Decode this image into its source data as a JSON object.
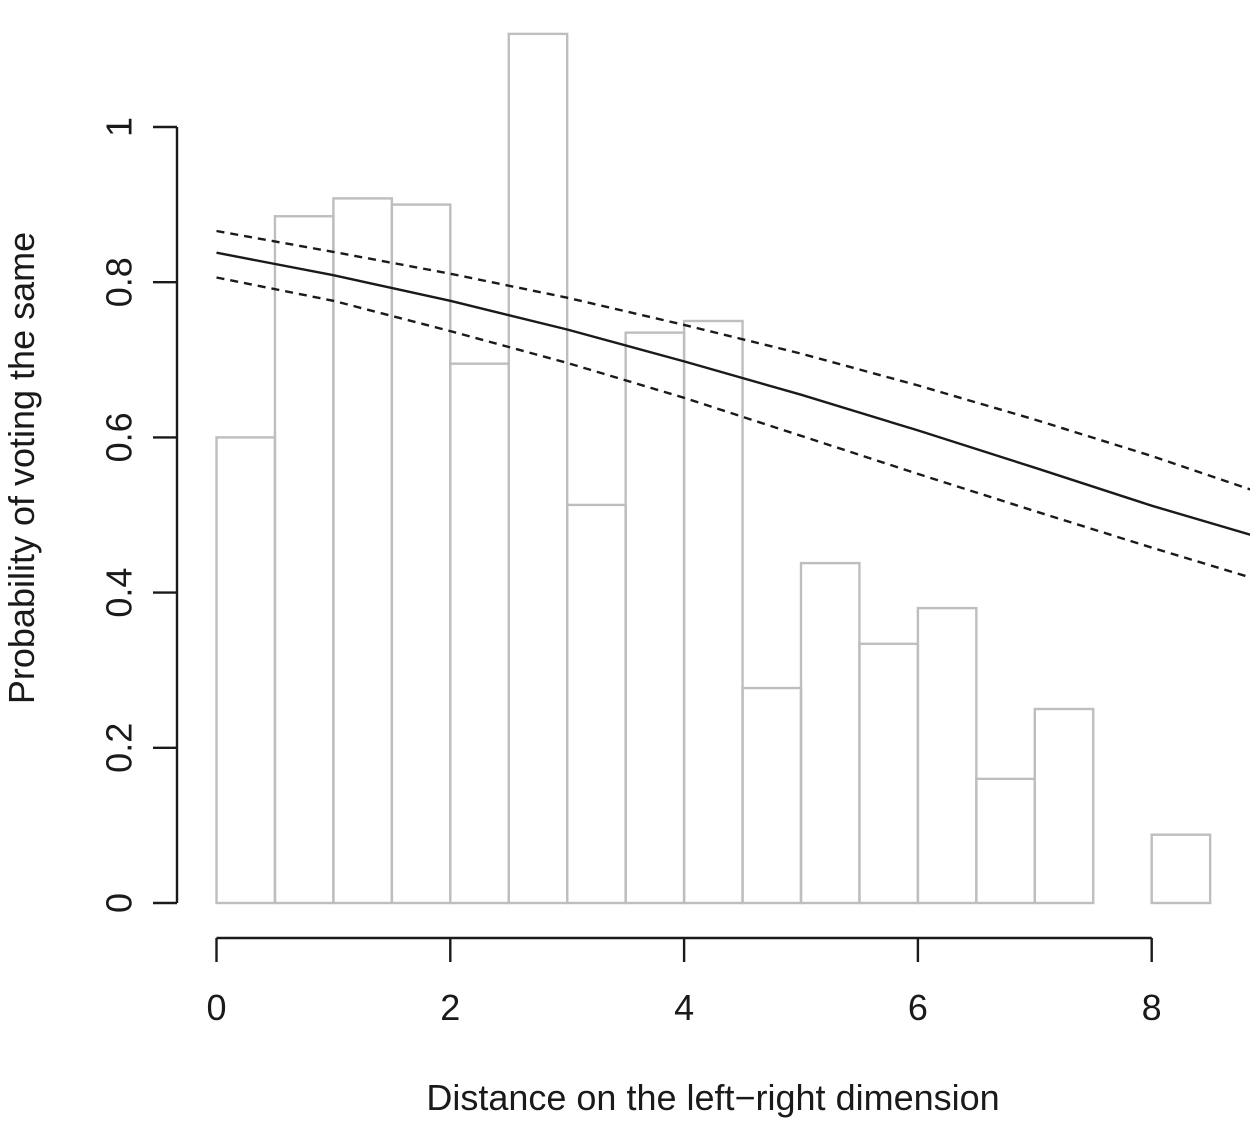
{
  "chart_data": {
    "type": "bar",
    "title": "",
    "xlabel": "Distance on the left−right dimension",
    "ylabel": "Probability of voting the same",
    "xlim": [
      0,
      8.9
    ],
    "ylim": [
      0,
      1.12
    ],
    "x_ticks": [
      "0",
      "2",
      "4",
      "6",
      "8"
    ],
    "y_ticks": [
      "0",
      "0.2",
      "0.4",
      "0.6",
      "0.8",
      "1"
    ],
    "grid": false,
    "histogram": {
      "bin_width": 0.5,
      "bin_starts": [
        0,
        0.5,
        1,
        1.5,
        2,
        2.5,
        3,
        3.5,
        4,
        4.5,
        5,
        5.5,
        6,
        6.5,
        7,
        7.5,
        8
      ],
      "values": [
        0.6,
        0.885,
        0.908,
        0.9,
        0.695,
        1.12,
        0.513,
        0.735,
        0.75,
        0.277,
        0.438,
        0.334,
        0.38,
        0.16,
        0.25,
        0.0,
        0.088
      ],
      "color": "#bebebe"
    },
    "series": [
      {
        "style": "solid",
        "color": "#1a1a1a",
        "x": [
          0,
          1,
          2,
          3,
          4,
          5,
          6,
          7,
          8,
          8.9
        ],
        "values": [
          0.838,
          0.809,
          0.776,
          0.739,
          0.698,
          0.655,
          0.609,
          0.561,
          0.512,
          0.472
        ]
      },
      {
        "style": "dashed",
        "color": "#1a1a1a",
        "x": [
          0,
          1,
          2,
          3,
          4,
          5,
          6,
          7,
          8,
          8.9
        ],
        "values": [
          0.866,
          0.839,
          0.811,
          0.78,
          0.745,
          0.708,
          0.667,
          0.623,
          0.576,
          0.53
        ]
      },
      {
        "style": "dashed",
        "color": "#1a1a1a",
        "x": [
          0,
          1,
          2,
          3,
          4,
          5,
          6,
          7,
          8,
          8.9
        ],
        "values": [
          0.806,
          0.776,
          0.737,
          0.696,
          0.651,
          0.602,
          0.553,
          0.505,
          0.458,
          0.417
        ]
      }
    ]
  }
}
